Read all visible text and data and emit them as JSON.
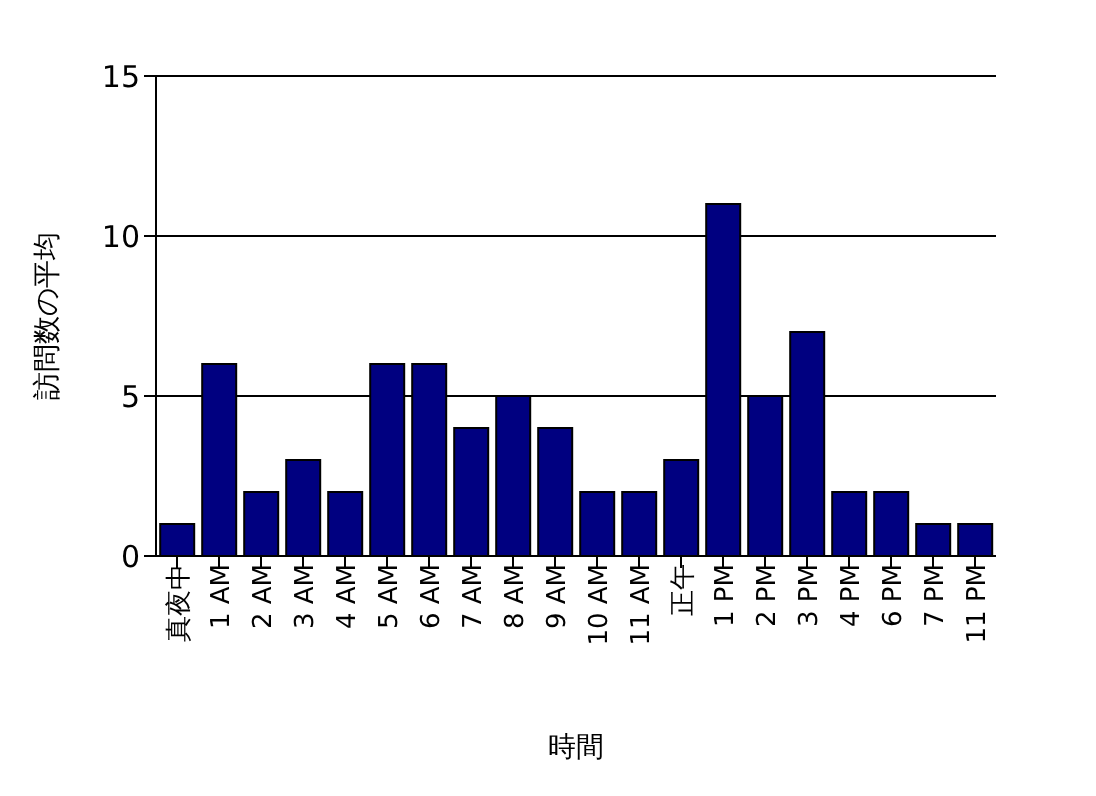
{
  "chart_data": {
    "type": "bar",
    "xlabel": "時間",
    "ylabel": "訪問数の平均",
    "categories": [
      "真夜中",
      "1 AM",
      "2 AM",
      "3 AM",
      "4 AM",
      "5 AM",
      "6 AM",
      "7 AM",
      "8 AM",
      "9 AM",
      "10 AM",
      "11 AM",
      "正午",
      "1 PM",
      "2 PM",
      "3 PM",
      "4 PM",
      "6 PM",
      "7 PM",
      "11 PM"
    ],
    "values": [
      1,
      6,
      2,
      3,
      2,
      6,
      6,
      4,
      5,
      4,
      2,
      2,
      3,
      11,
      5,
      7,
      2,
      2,
      1,
      1
    ],
    "color": "#000080",
    "ylim": [
      0,
      15
    ],
    "yticks": [
      0,
      5,
      10,
      15
    ],
    "grid": "y",
    "legend": false
  }
}
